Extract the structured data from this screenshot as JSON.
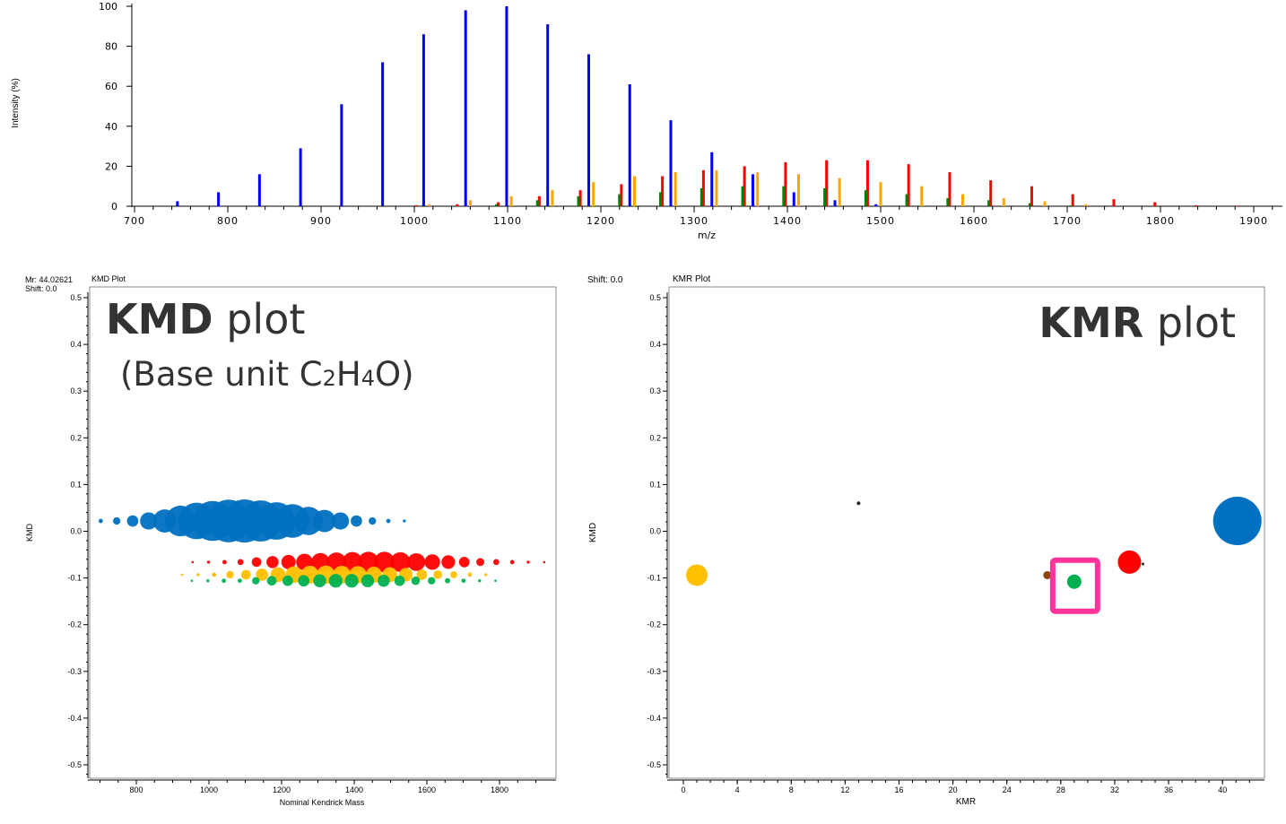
{
  "chart_data": [
    {
      "type": "bar",
      "xlabel": "m/z",
      "ylabel": "Intensity (%)",
      "xlim": [
        700,
        1920
      ],
      "ylim": [
        0,
        100
      ],
      "xticks": [
        700,
        800,
        900,
        1000,
        1100,
        1200,
        1300,
        1400,
        1500,
        1600,
        1700,
        1800,
        1900
      ],
      "yticks": [
        0,
        20,
        40,
        60,
        80,
        100
      ],
      "series": [
        {
          "color": "#0000ff",
          "x": [
            746,
            790,
            834,
            878,
            922,
            966,
            1010,
            1055,
            1099,
            1143,
            1187,
            1231,
            1275,
            1319,
            1363,
            1407,
            1451,
            1495
          ],
          "y": [
            2.5,
            7,
            16,
            29,
            51,
            72,
            86,
            98,
            100,
            91,
            76,
            61,
            43,
            27,
            16,
            7,
            3,
            1
          ]
        },
        {
          "color": "#ff0000",
          "x": [
            1002,
            1046,
            1090,
            1134,
            1178,
            1222,
            1266,
            1310,
            1354,
            1398,
            1442,
            1486,
            1530,
            1574,
            1618,
            1662,
            1706,
            1750,
            1794,
            1838,
            1882
          ],
          "y": [
            0.5,
            1,
            2,
            5,
            8,
            11,
            15,
            18,
            20,
            22,
            23,
            23,
            21,
            17,
            13,
            10,
            6,
            3.5,
            2,
            0.5,
            0.3
          ]
        },
        {
          "color": "#008000",
          "x": [
            1088,
            1132,
            1176,
            1220,
            1264,
            1308,
            1352,
            1396,
            1440,
            1484,
            1528,
            1572,
            1616,
            1660,
            1704
          ],
          "y": [
            1,
            3,
            5,
            6,
            7,
            9,
            10,
            10,
            9,
            8,
            6,
            4,
            3,
            1.5,
            0.5
          ]
        },
        {
          "color": "#ffa500",
          "x": [
            1016,
            1060,
            1104,
            1148,
            1192,
            1236,
            1280,
            1324,
            1368,
            1412,
            1456,
            1500,
            1544,
            1588,
            1632,
            1676,
            1720
          ],
          "y": [
            1,
            3,
            5,
            8,
            12,
            15,
            17,
            18,
            17,
            16,
            14,
            12,
            10,
            6,
            4,
            2.5,
            1
          ]
        }
      ]
    },
    {
      "type": "scatter",
      "title": "KMD Plot",
      "mr_label": "Mr: 44.02621",
      "shift_label": "Shift: 0.0",
      "overlay_title_bold": "KMD",
      "overlay_title_rest": " plot",
      "overlay_subtitle": {
        "pre": "(Base unit C",
        "s1": "2",
        "mid": "H",
        "s2": "4",
        "post": "O)"
      },
      "xlabel": "Nominal Kendrick Mass",
      "ylabel": "KMD",
      "xlim": [
        600,
        1940
      ],
      "ylim": [
        -0.53,
        0.53
      ],
      "xticks": [
        800,
        1000,
        1200,
        1400,
        1600,
        1800
      ],
      "yticks": [
        0.5,
        0.4,
        0.3,
        0.2,
        0.1,
        0.0,
        -0.1,
        -0.2,
        -0.3,
        -0.4,
        -0.5
      ],
      "series": [
        {
          "color": "#0070c0",
          "kmd": 0.022,
          "x_start": 702,
          "step": 44,
          "size": [
            1,
            3,
            7,
            16,
            29,
            51,
            72,
            86,
            98,
            100,
            91,
            76,
            61,
            43,
            27,
            16,
            7,
            3,
            1,
            0.5
          ]
        },
        {
          "color": "#ff0000",
          "kmd": -0.066,
          "x_start": 955,
          "step": 44,
          "size": [
            0.3,
            0.5,
            1,
            2,
            5,
            8,
            11,
            15,
            18,
            20,
            22,
            23,
            23,
            21,
            17,
            13,
            10,
            6,
            3.5,
            2,
            1,
            0.5,
            0.3
          ]
        },
        {
          "color": "#8b4513",
          "kmd": -0.093,
          "x_start": 1014,
          "step": 44,
          "size": [
            0.2,
            0.3,
            0.5,
            0.6,
            0.6,
            0.5,
            0.4
          ]
        },
        {
          "color": "#ffc000",
          "kmd": -0.093,
          "x_start": 926,
          "step": 44,
          "size": [
            0.3,
            0.5,
            1,
            3,
            5,
            8,
            12,
            15,
            17,
            18,
            17,
            16,
            14,
            12,
            10,
            6,
            4,
            2.5,
            1,
            0.5
          ]
        },
        {
          "color": "#00b050",
          "kmd": -0.106,
          "x_start": 953,
          "step": 44,
          "size": [
            0.3,
            0.5,
            1,
            1,
            3,
            5,
            6,
            7,
            9,
            10,
            10,
            9,
            8,
            6,
            4,
            3,
            1.5,
            1,
            0.5,
            0.3
          ]
        }
      ]
    },
    {
      "type": "scatter",
      "title": "KMR Plot",
      "shift_label": "Shift: 0.0",
      "overlay_title_bold": "KMR",
      "overlay_title_rest": " plot",
      "xlabel": "KMR",
      "ylabel": "KMD",
      "xlim": [
        -1,
        43
      ],
      "ylim": [
        -0.53,
        0.53
      ],
      "xticks": [
        0,
        4,
        8,
        12,
        16,
        20,
        24,
        28,
        32,
        36,
        40
      ],
      "yticks": [
        0.5,
        0.4,
        0.3,
        0.2,
        0.1,
        0.0,
        -0.1,
        -0.2,
        -0.3,
        -0.4,
        -0.5
      ],
      "highlight_color": "#ff3399",
      "points": [
        {
          "x": 1.0,
          "y": -0.094,
          "size": 12,
          "color": "#ffc000"
        },
        {
          "x": 13.0,
          "y": 0.06,
          "size": 2,
          "color": "#222222"
        },
        {
          "x": 27.0,
          "y": -0.094,
          "size": 4.5,
          "color": "#8b4513"
        },
        {
          "x": 29.0,
          "y": -0.108,
          "size": 8,
          "color": "#00b050",
          "highlighted": true
        },
        {
          "x": 33.1,
          "y": -0.066,
          "size": 13,
          "color": "#ff0000"
        },
        {
          "x": 34.1,
          "y": -0.07,
          "size": 1.5,
          "color": "#222222"
        },
        {
          "x": 41.1,
          "y": 0.022,
          "size": 27,
          "color": "#0070c0"
        }
      ]
    }
  ]
}
